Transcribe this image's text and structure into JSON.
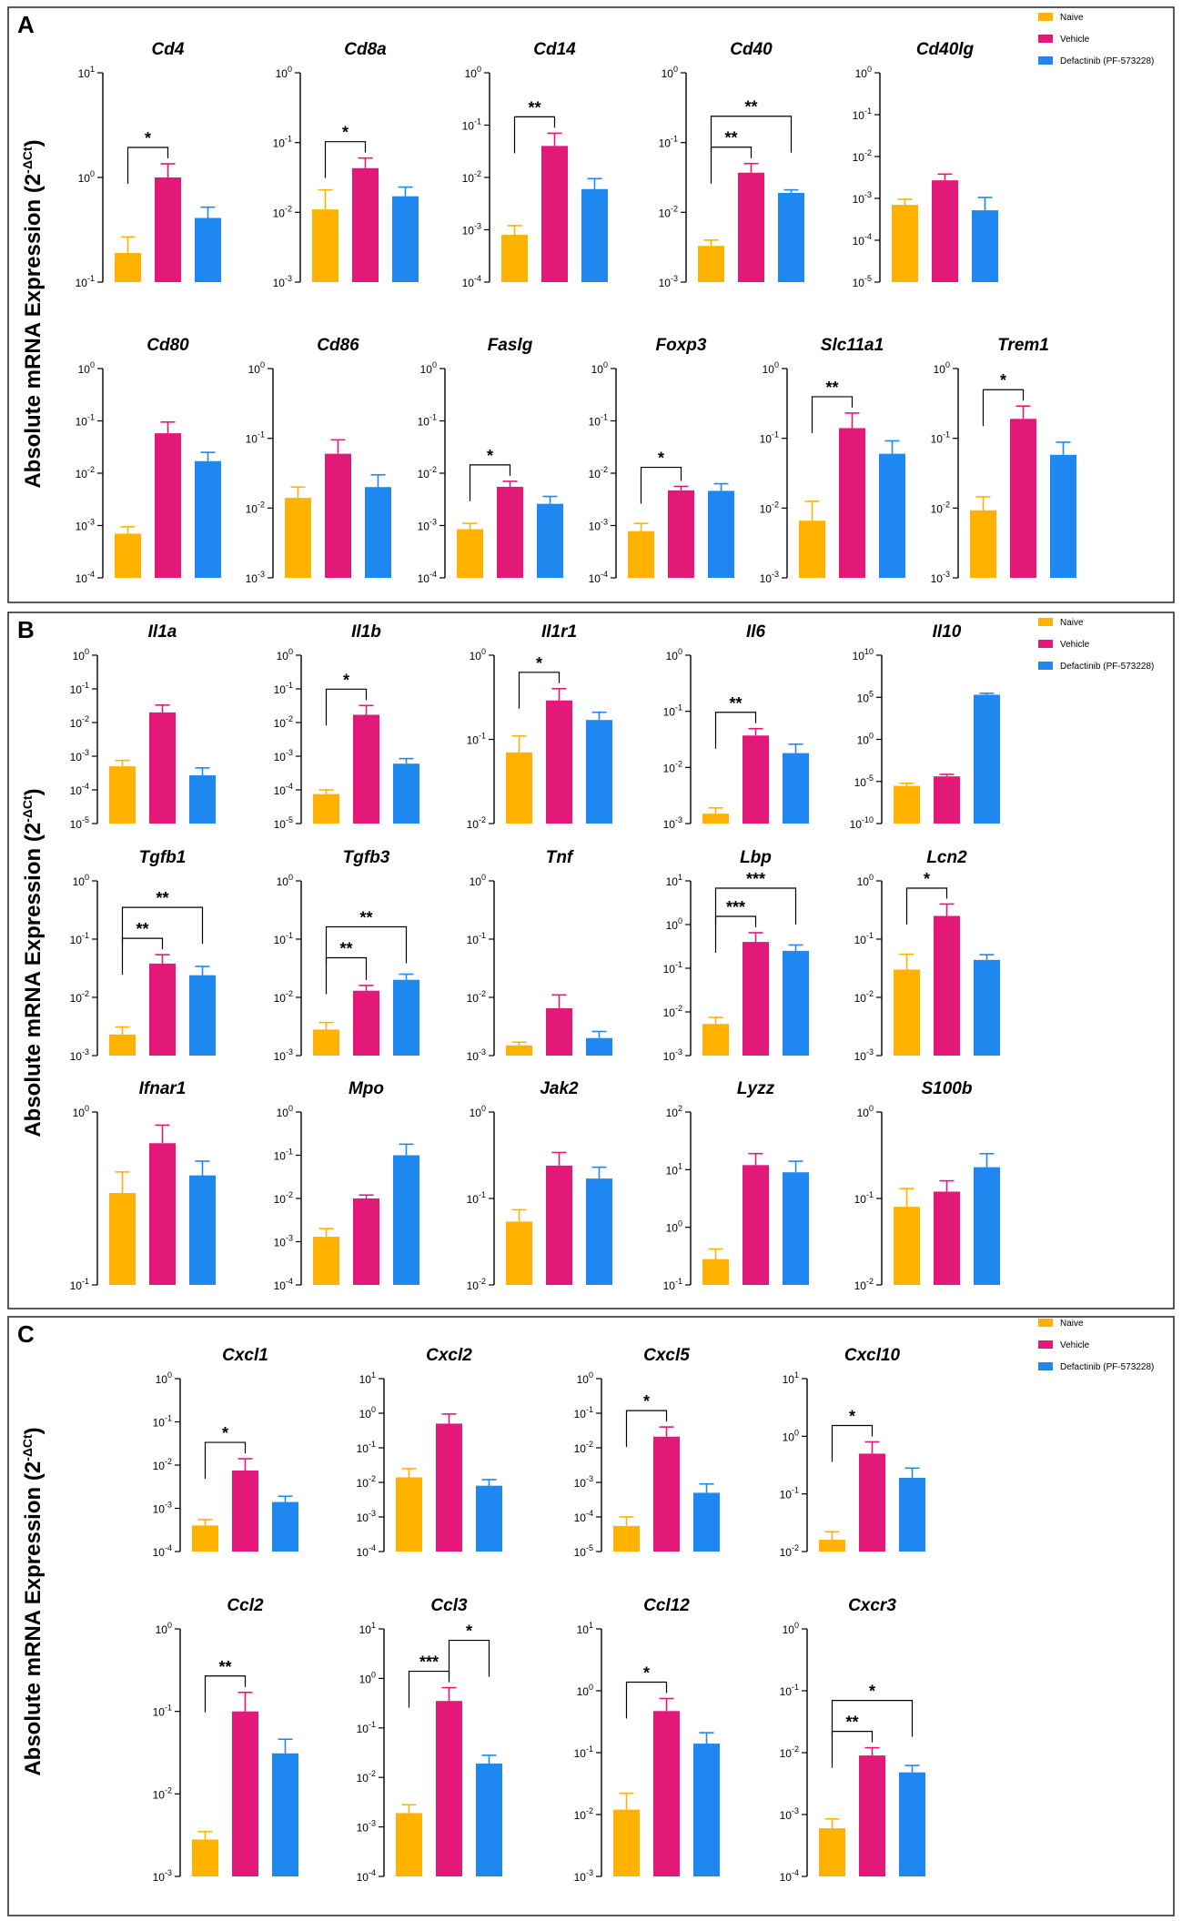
{
  "legend": {
    "groups": [
      {
        "name": "Naive",
        "color": "#FFB300"
      },
      {
        "name": "Vehicle",
        "color": "#E3197A"
      },
      {
        "name": "Defactinib (PF-573228)",
        "color": "#1E88F0"
      }
    ]
  },
  "y_axis_label": "Absolute mRNA Expression (2",
  "y_axis_label_sup": "-ΔCt",
  "y_axis_label_end": ")",
  "panels": [
    {
      "label": "A"
    },
    {
      "label": "B"
    },
    {
      "label": "C"
    }
  ],
  "chart_data": [
    {
      "type": "bar",
      "panel": "A",
      "title": "Cd4",
      "categories": [
        "Naive",
        "Vehicle",
        "Defactinib (PF-573228)"
      ],
      "scale": "log10",
      "ylim_exp": [
        -1,
        1
      ],
      "values": [
        0.19,
        1.0,
        0.41
      ],
      "errors": [
        0.27,
        1.35,
        0.52
      ],
      "significance": [
        {
          "from": 0,
          "to": 1,
          "label": "*"
        }
      ]
    },
    {
      "type": "bar",
      "panel": "A",
      "title": "Cd8a",
      "categories": [
        "Naive",
        "Vehicle",
        "Defactinib (PF-573228)"
      ],
      "scale": "log10",
      "ylim_exp": [
        -3,
        0
      ],
      "values": [
        0.011,
        0.043,
        0.017
      ],
      "errors": [
        0.021,
        0.06,
        0.023
      ],
      "significance": [
        {
          "from": 0,
          "to": 1,
          "label": "*"
        }
      ]
    },
    {
      "type": "bar",
      "panel": "A",
      "title": "Cd14",
      "categories": [
        "Naive",
        "Vehicle",
        "Defactinib (PF-573228)"
      ],
      "scale": "log10",
      "ylim_exp": [
        -4,
        0
      ],
      "values": [
        0.0008,
        0.04,
        0.006
      ],
      "errors": [
        0.0012,
        0.07,
        0.0095
      ],
      "significance": [
        {
          "from": 0,
          "to": 1,
          "label": "**"
        }
      ]
    },
    {
      "type": "bar",
      "panel": "A",
      "title": "Cd40",
      "categories": [
        "Naive",
        "Vehicle",
        "Defactinib (PF-573228)"
      ],
      "scale": "log10",
      "ylim_exp": [
        -3,
        0
      ],
      "values": [
        0.0033,
        0.037,
        0.019
      ],
      "errors": [
        0.004,
        0.05,
        0.021
      ],
      "significance": [
        {
          "from": 0,
          "to": 1,
          "label": "**"
        },
        {
          "from": 0,
          "to": 2,
          "label": "**"
        }
      ]
    },
    {
      "type": "bar",
      "panel": "A",
      "title": "Cd40lg",
      "categories": [
        "Naive",
        "Vehicle",
        "Defactinib (PF-573228)"
      ],
      "scale": "log10",
      "ylim_exp": [
        -5,
        0
      ],
      "values": [
        0.0007,
        0.0027,
        0.00052
      ],
      "errors": [
        0.00095,
        0.0038,
        0.00105
      ],
      "significance": []
    },
    {
      "type": "bar",
      "panel": "A",
      "title": "Cd80",
      "categories": [
        "Naive",
        "Vehicle",
        "Defactinib (PF-573228)"
      ],
      "scale": "log10",
      "ylim_exp": [
        -4,
        0
      ],
      "values": [
        0.0007,
        0.058,
        0.017
      ],
      "errors": [
        0.00095,
        0.095,
        0.025
      ],
      "significance": []
    },
    {
      "type": "bar",
      "panel": "A",
      "title": "Cd86",
      "categories": [
        "Naive",
        "Vehicle",
        "Defactinib (PF-573228)"
      ],
      "scale": "log10",
      "ylim_exp": [
        -3,
        0
      ],
      "values": [
        0.014,
        0.06,
        0.02
      ],
      "errors": [
        0.02,
        0.095,
        0.03
      ],
      "significance": []
    },
    {
      "type": "bar",
      "panel": "A",
      "title": "Faslg",
      "categories": [
        "Naive",
        "Vehicle",
        "Defactinib (PF-573228)"
      ],
      "scale": "log10",
      "ylim_exp": [
        -4,
        0
      ],
      "values": [
        0.00085,
        0.0055,
        0.0026
      ],
      "errors": [
        0.0011,
        0.007,
        0.0036
      ],
      "significance": [
        {
          "from": 0,
          "to": 1,
          "label": "*"
        }
      ]
    },
    {
      "type": "bar",
      "panel": "A",
      "title": "Foxp3",
      "categories": [
        "Naive",
        "Vehicle",
        "Defactinib (PF-573228)"
      ],
      "scale": "log10",
      "ylim_exp": [
        -4,
        0
      ],
      "values": [
        0.00078,
        0.0047,
        0.0046
      ],
      "errors": [
        0.0011,
        0.0056,
        0.0063
      ],
      "significance": [
        {
          "from": 0,
          "to": 1,
          "label": "*"
        }
      ]
    },
    {
      "type": "bar",
      "panel": "A",
      "title": "Slc11a1",
      "categories": [
        "Naive",
        "Vehicle",
        "Defactinib (PF-573228)"
      ],
      "scale": "log10",
      "ylim_exp": [
        -3,
        0
      ],
      "values": [
        0.0066,
        0.14,
        0.06
      ],
      "errors": [
        0.0125,
        0.23,
        0.092
      ],
      "significance": [
        {
          "from": 0,
          "to": 1,
          "label": "**"
        }
      ]
    },
    {
      "type": "bar",
      "panel": "A",
      "title": "Trem1",
      "categories": [
        "Naive",
        "Vehicle",
        "Defactinib (PF-573228)"
      ],
      "scale": "log10",
      "ylim_exp": [
        -3,
        0
      ],
      "values": [
        0.0093,
        0.19,
        0.058
      ],
      "errors": [
        0.0145,
        0.29,
        0.088
      ],
      "significance": [
        {
          "from": 0,
          "to": 1,
          "label": "*"
        }
      ]
    },
    {
      "type": "bar",
      "panel": "B",
      "title": "Il1a",
      "categories": [
        "Naive",
        "Vehicle",
        "Defactinib (PF-573228)"
      ],
      "scale": "log10",
      "ylim_exp": [
        -5,
        0
      ],
      "values": [
        0.0005,
        0.02,
        0.00027
      ],
      "errors": [
        0.00075,
        0.033,
        0.00045
      ],
      "significance": []
    },
    {
      "type": "bar",
      "panel": "B",
      "title": "Il1b",
      "categories": [
        "Naive",
        "Vehicle",
        "Defactinib (PF-573228)"
      ],
      "scale": "log10",
      "ylim_exp": [
        -5,
        0
      ],
      "values": [
        7.5e-05,
        0.017,
        0.0006
      ],
      "errors": [
        0.0001,
        0.032,
        0.00085
      ],
      "significance": [
        {
          "from": 0,
          "to": 1,
          "label": "*"
        }
      ]
    },
    {
      "type": "bar",
      "panel": "B",
      "title": "Il1r1",
      "categories": [
        "Naive",
        "Vehicle",
        "Defactinib (PF-573228)"
      ],
      "scale": "log10",
      "ylim_exp": [
        -2,
        0
      ],
      "values": [
        0.07,
        0.29,
        0.17
      ],
      "errors": [
        0.11,
        0.4,
        0.21
      ],
      "significance": [
        {
          "from": 0,
          "to": 1,
          "label": "*"
        }
      ]
    },
    {
      "type": "bar",
      "panel": "B",
      "title": "Il6",
      "categories": [
        "Naive",
        "Vehicle",
        "Defactinib (PF-573228)"
      ],
      "scale": "log10",
      "ylim_exp": [
        -3,
        0
      ],
      "values": [
        0.0015,
        0.037,
        0.018
      ],
      "errors": [
        0.0019,
        0.049,
        0.026
      ],
      "significance": [
        {
          "from": 0,
          "to": 1,
          "label": "**"
        }
      ]
    },
    {
      "type": "bar",
      "panel": "B",
      "title": "Il10",
      "categories": [
        "Naive",
        "Vehicle",
        "Defactinib (PF-573228)"
      ],
      "scale": "log10",
      "ylim_exp": [
        -10,
        10
      ],
      "values": [
        3e-06,
        4e-05,
        200000
      ],
      "errors": [
        6e-06,
        7e-05,
        300000
      ],
      "significance": []
    },
    {
      "type": "bar",
      "panel": "B",
      "title": "Tgfb1",
      "categories": [
        "Naive",
        "Vehicle",
        "Defactinib (PF-573228)"
      ],
      "scale": "log10",
      "ylim_exp": [
        -3,
        0
      ],
      "values": [
        0.0023,
        0.038,
        0.024
      ],
      "errors": [
        0.0031,
        0.054,
        0.034
      ],
      "significance": [
        {
          "from": 0,
          "to": 1,
          "label": "**"
        },
        {
          "from": 0,
          "to": 2,
          "label": "**"
        }
      ]
    },
    {
      "type": "bar",
      "panel": "B",
      "title": "Tgfb3",
      "categories": [
        "Naive",
        "Vehicle",
        "Defactinib (PF-573228)"
      ],
      "scale": "log10",
      "ylim_exp": [
        -3,
        0
      ],
      "values": [
        0.0028,
        0.013,
        0.02
      ],
      "errors": [
        0.0037,
        0.016,
        0.025
      ],
      "significance": [
        {
          "from": 0,
          "to": 1,
          "label": "**"
        },
        {
          "from": 0,
          "to": 2,
          "label": "**"
        }
      ]
    },
    {
      "type": "bar",
      "panel": "B",
      "title": "Tnf",
      "categories": [
        "Naive",
        "Vehicle",
        "Defactinib (PF-573228)"
      ],
      "scale": "log10",
      "ylim_exp": [
        -3,
        0
      ],
      "values": [
        0.0015,
        0.0065,
        0.002
      ],
      "errors": [
        0.0017,
        0.011,
        0.0026
      ],
      "significance": []
    },
    {
      "type": "bar",
      "panel": "B",
      "title": "Lbp",
      "categories": [
        "Naive",
        "Vehicle",
        "Defactinib (PF-573228)"
      ],
      "scale": "log10",
      "ylim_exp": [
        -3,
        1
      ],
      "values": [
        0.0053,
        0.4,
        0.25
      ],
      "errors": [
        0.0075,
        0.65,
        0.34
      ],
      "significance": [
        {
          "from": 0,
          "to": 1,
          "label": "***"
        },
        {
          "from": 0,
          "to": 2,
          "label": "***"
        }
      ]
    },
    {
      "type": "bar",
      "panel": "B",
      "title": "Lcn2",
      "categories": [
        "Naive",
        "Vehicle",
        "Defactinib (PF-573228)"
      ],
      "scale": "log10",
      "ylim_exp": [
        -3,
        0
      ],
      "values": [
        0.03,
        0.25,
        0.044
      ],
      "errors": [
        0.055,
        0.4,
        0.054
      ],
      "significance": [
        {
          "from": 0,
          "to": 1,
          "label": "*"
        }
      ]
    },
    {
      "type": "bar",
      "panel": "B",
      "title": "Ifnar1",
      "categories": [
        "Naive",
        "Vehicle",
        "Defactinib (PF-573228)"
      ],
      "scale": "log10",
      "ylim_exp": [
        -1,
        0
      ],
      "values": [
        0.34,
        0.66,
        0.43
      ],
      "errors": [
        0.45,
        0.84,
        0.52
      ],
      "significance": []
    },
    {
      "type": "bar",
      "panel": "B",
      "title": "Mpo",
      "categories": [
        "Naive",
        "Vehicle",
        "Defactinib (PF-573228)"
      ],
      "scale": "log10",
      "ylim_exp": [
        -4,
        0
      ],
      "values": [
        0.0013,
        0.01,
        0.1
      ],
      "errors": [
        0.002,
        0.012,
        0.18
      ],
      "significance": []
    },
    {
      "type": "bar",
      "panel": "B",
      "title": "Jak2",
      "categories": [
        "Naive",
        "Vehicle",
        "Defactinib (PF-573228)"
      ],
      "scale": "log10",
      "ylim_exp": [
        -2,
        0
      ],
      "values": [
        0.054,
        0.24,
        0.17
      ],
      "errors": [
        0.074,
        0.34,
        0.23
      ],
      "significance": []
    },
    {
      "type": "bar",
      "panel": "B",
      "title": "Lyzz",
      "categories": [
        "Naive",
        "Vehicle",
        "Defactinib (PF-573228)"
      ],
      "scale": "log10",
      "ylim_exp": [
        -1,
        2
      ],
      "values": [
        0.28,
        12,
        9
      ],
      "errors": [
        0.42,
        19,
        14
      ],
      "significance": []
    },
    {
      "type": "bar",
      "panel": "B",
      "title": "S100b",
      "categories": [
        "Naive",
        "Vehicle",
        "Defactinib (PF-573228)"
      ],
      "scale": "log10",
      "ylim_exp": [
        -2,
        0
      ],
      "values": [
        0.08,
        0.12,
        0.23
      ],
      "errors": [
        0.13,
        0.16,
        0.33
      ],
      "significance": []
    },
    {
      "type": "bar",
      "panel": "C",
      "title": "Cxcl1",
      "categories": [
        "Naive",
        "Vehicle",
        "Defactinib (PF-573228)"
      ],
      "scale": "log10",
      "ylim_exp": [
        -4,
        0
      ],
      "values": [
        0.0004,
        0.0075,
        0.0014
      ],
      "errors": [
        0.00055,
        0.014,
        0.0019
      ],
      "significance": [
        {
          "from": 0,
          "to": 1,
          "label": "*"
        }
      ]
    },
    {
      "type": "bar",
      "panel": "C",
      "title": "Cxcl2",
      "categories": [
        "Naive",
        "Vehicle",
        "Defactinib (PF-573228)"
      ],
      "scale": "log10",
      "ylim_exp": [
        -4,
        1
      ],
      "values": [
        0.014,
        0.5,
        0.008
      ],
      "errors": [
        0.025,
        0.95,
        0.012
      ],
      "significance": []
    },
    {
      "type": "bar",
      "panel": "C",
      "title": "Cxcl5",
      "categories": [
        "Naive",
        "Vehicle",
        "Defactinib (PF-573228)"
      ],
      "scale": "log10",
      "ylim_exp": [
        -5,
        0
      ],
      "values": [
        5.5e-05,
        0.021,
        0.0005
      ],
      "errors": [
        0.0001,
        0.04,
        0.0009
      ],
      "significance": [
        {
          "from": 0,
          "to": 1,
          "label": "*"
        }
      ]
    },
    {
      "type": "bar",
      "panel": "C",
      "title": "Cxcl10",
      "categories": [
        "Naive",
        "Vehicle",
        "Defactinib (PF-573228)"
      ],
      "scale": "log10",
      "ylim_exp": [
        -2,
        1
      ],
      "values": [
        0.016,
        0.5,
        0.19
      ],
      "errors": [
        0.022,
        0.8,
        0.28
      ],
      "significance": [
        {
          "from": 0,
          "to": 1,
          "label": "*"
        }
      ]
    },
    {
      "type": "bar",
      "panel": "C",
      "title": "Ccl2",
      "categories": [
        "Naive",
        "Vehicle",
        "Defactinib (PF-573228)"
      ],
      "scale": "log10",
      "ylim_exp": [
        -3,
        0
      ],
      "values": [
        0.0028,
        0.1,
        0.031
      ],
      "errors": [
        0.0035,
        0.17,
        0.046
      ],
      "significance": [
        {
          "from": 0,
          "to": 1,
          "label": "**"
        }
      ]
    },
    {
      "type": "bar",
      "panel": "C",
      "title": "Ccl3",
      "categories": [
        "Naive",
        "Vehicle",
        "Defactinib (PF-573228)"
      ],
      "scale": "log10",
      "ylim_exp": [
        -4,
        1
      ],
      "values": [
        0.0019,
        0.35,
        0.019
      ],
      "errors": [
        0.0028,
        0.65,
        0.028
      ],
      "significance": [
        {
          "from": 0,
          "to": 1,
          "label": "***"
        },
        {
          "from": 1,
          "to": 2,
          "label": "*"
        }
      ]
    },
    {
      "type": "bar",
      "panel": "C",
      "title": "Ccl12",
      "categories": [
        "Naive",
        "Vehicle",
        "Defactinib (PF-573228)"
      ],
      "scale": "log10",
      "ylim_exp": [
        -3,
        1
      ],
      "values": [
        0.012,
        0.47,
        0.14
      ],
      "errors": [
        0.022,
        0.75,
        0.21
      ],
      "significance": [
        {
          "from": 0,
          "to": 1,
          "label": "*"
        }
      ]
    },
    {
      "type": "bar",
      "panel": "C",
      "title": "Cxcr3",
      "categories": [
        "Naive",
        "Vehicle",
        "Defactinib (PF-573228)"
      ],
      "scale": "log10",
      "ylim_exp": [
        -4,
        0
      ],
      "values": [
        0.0006,
        0.009,
        0.0048
      ],
      "errors": [
        0.00085,
        0.012,
        0.0062
      ],
      "significance": [
        {
          "from": 0,
          "to": 1,
          "label": "**"
        },
        {
          "from": 0,
          "to": 2,
          "label": "*"
        }
      ]
    }
  ]
}
